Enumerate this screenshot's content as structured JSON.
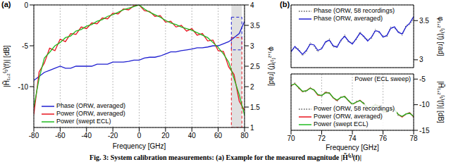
{
  "chart_data": [
    {
      "type": "line",
      "label": "(a)",
      "xlabel": "Frequency [GHz]",
      "ylabel": "|H̃₁,₂⁽¹⁾(f)| [dB]",
      "y2label": "φ₁,₂⁽¹⁾(f) [rad]",
      "x": [
        -80,
        -76,
        -72,
        -68,
        -64,
        -60,
        -56,
        -52,
        -48,
        -44,
        -40,
        -36,
        -32,
        -28,
        -24,
        -20,
        -16,
        -12,
        -8,
        -4,
        0,
        4,
        8,
        12,
        16,
        20,
        24,
        28,
        32,
        36,
        40,
        44,
        48,
        52,
        56,
        60,
        64,
        68,
        72,
        76,
        80
      ],
      "xlim": [
        -80,
        80
      ],
      "xticks": [
        -80,
        -60,
        -40,
        -20,
        0,
        20,
        40,
        60,
        80
      ],
      "ylim": [
        -15,
        0
      ],
      "yticks": [
        -10,
        -5,
        0
      ],
      "y2lim": [
        1,
        4
      ],
      "y2ticks": [
        1,
        1.5,
        2,
        2.5,
        3,
        3.5,
        4
      ],
      "grid": true,
      "legend": "lower left",
      "series": [
        {
          "name": "Phase (ORW, averaged)",
          "color": "#1f1fd0",
          "axis": "y2",
          "line_style": "solid",
          "values": [
            2.15,
            2.25,
            2.35,
            2.4,
            2.45,
            2.5,
            2.45,
            2.45,
            2.5,
            2.5,
            2.5,
            2.5,
            2.55,
            2.55,
            2.55,
            2.6,
            2.6,
            2.6,
            2.62,
            2.65,
            2.65,
            2.7,
            2.72,
            2.72,
            2.75,
            2.8,
            2.85,
            2.85,
            2.88,
            2.9,
            2.92,
            2.95,
            2.95,
            2.97,
            3.0,
            3.0,
            3.05,
            3.1,
            3.2,
            3.3,
            3.6
          ]
        },
        {
          "name": "Power (ORW, averaged)",
          "color": "#e8141e",
          "line_style": "solid",
          "values": [
            -13.4,
            -8.2,
            -7.1,
            -5.3,
            -5.6,
            -4.2,
            -4.5,
            -3.5,
            -3.6,
            -2.7,
            -2.9,
            -2.2,
            -2.3,
            -1.6,
            -1.7,
            -1.0,
            -1.1,
            -0.5,
            -0.6,
            -0.1,
            0,
            -0.7,
            -0.8,
            -1.4,
            -1.3,
            -2.1,
            -2.0,
            -2.7,
            -2.5,
            -3.2,
            -2.9,
            -3.7,
            -3.5,
            -4.4,
            -4.3,
            -5.6,
            -5.7,
            -7.6,
            -8.5,
            -11.8,
            -12.9
          ]
        },
        {
          "name": "Power (swept ECL)",
          "color": "#22bb22",
          "line_style": "solid",
          "values": [
            -12.5,
            -9,
            -6.5,
            -5.8,
            -5,
            -4.6,
            -4,
            -3.8,
            -3.2,
            -3,
            -2.6,
            -2.4,
            -2,
            -1.8,
            -1.4,
            -1.2,
            -0.9,
            -0.6,
            -0.4,
            -0.2,
            0,
            -0.5,
            -0.9,
            -1.2,
            -1.5,
            -1.9,
            -2.2,
            -2.4,
            -2.7,
            -2.9,
            -3.1,
            -3.4,
            -3.7,
            -4,
            -4.6,
            -5.2,
            -6,
            -7,
            -9,
            -11,
            -13.5
          ]
        }
      ]
    },
    {
      "type": "line",
      "label": "(b)",
      "y2label": "φ₁,₂⁽¹⁾(f) [rad]",
      "tick_labels": "y",
      "x": [
        70,
        70.25,
        70.5,
        70.75,
        71,
        71.25,
        71.5,
        71.75,
        72,
        72.25,
        72.5,
        72.75,
        73,
        73.25,
        73.5,
        73.75,
        74,
        74.25,
        74.5,
        74.75,
        75,
        75.25,
        75.5,
        75.75,
        76,
        76.25,
        76.5,
        76.75,
        77,
        77.25,
        77.5,
        77.75,
        78
      ],
      "xlim": [
        70,
        78
      ],
      "xticks": [
        70,
        72,
        74,
        76,
        78
      ],
      "y2lim": [
        2.9,
        3.7
      ],
      "y2ticks": [
        3,
        3.5
      ],
      "grid": true,
      "legend": "upper left",
      "series": [
        {
          "name": "Phase (ORW, 58 recordings)",
          "color": "#555555",
          "axis": "y2",
          "line_style": "dotted",
          "values": [
            3.12,
            3.15,
            3.14,
            3.05,
            3.1,
            3.22,
            3.17,
            3.1,
            3.16,
            3.21,
            3.27,
            3.16,
            3.18,
            3.23,
            3.32,
            3.22,
            3.22,
            3.25,
            3.36,
            3.28,
            3.26,
            3.27,
            3.39,
            3.34,
            3.31,
            3.29,
            3.42,
            3.4,
            3.37,
            3.31,
            3.44,
            3.45,
            3.52
          ]
        },
        {
          "name": "Phase (ORW, averaged)",
          "color": "#1f1fd0",
          "axis": "y2",
          "line_style": "solid",
          "values": [
            3.1,
            3.17,
            3.12,
            3.07,
            3.12,
            3.2,
            3.19,
            3.12,
            3.14,
            3.23,
            3.25,
            3.18,
            3.16,
            3.25,
            3.3,
            3.24,
            3.2,
            3.27,
            3.34,
            3.3,
            3.24,
            3.29,
            3.37,
            3.36,
            3.29,
            3.31,
            3.4,
            3.42,
            3.35,
            3.33,
            3.42,
            3.47,
            3.55
          ]
        }
      ]
    },
    {
      "type": "line",
      "xlabel": "Frequency [GHz]",
      "y2label": "|H̃₁,₂⁽¹⁾(f)| [dB]",
      "annotation": "Power (ECL sweep)",
      "x": [
        70,
        70.25,
        70.5,
        70.75,
        71,
        71.25,
        71.5,
        71.75,
        72,
        72.25,
        72.5,
        72.75,
        73,
        73.25,
        73.5,
        73.75,
        74,
        74.25,
        74.5,
        74.75,
        75,
        75.25,
        75.5,
        75.75,
        76,
        76.25,
        76.5,
        76.75,
        77,
        77.25,
        77.5,
        77.75,
        78
      ],
      "xlim": [
        70,
        78
      ],
      "xticks": [
        70,
        72,
        74,
        76,
        78
      ],
      "y2lim": [
        -15,
        -4
      ],
      "y2ticks": [
        -15,
        -10,
        -5
      ],
      "grid": true,
      "legend": "lower left",
      "series": [
        {
          "name": "Power (ORW, 58 recordings)",
          "color": "#555555",
          "axis": "y2",
          "line_style": "dotted",
          "values": [
            -6.5,
            -5.7,
            -6.9,
            -7.3,
            -7.5,
            -6.6,
            -7.3,
            -8.0,
            -8.4,
            -7.4,
            -7.9,
            -8.5,
            -9.4,
            -8.4,
            -8.6,
            -9.1,
            -10.2,
            -9.3,
            -9.3,
            -9.6,
            -10.9,
            -10.3,
            -10.2,
            -10.2,
            -11.6,
            -11.3,
            -11.1,
            -10.7,
            -12.2,
            -12.2,
            -12.0,
            -11.4,
            -12.6
          ]
        },
        {
          "name": "Power (ORW, averaged)",
          "color": "#e8141e",
          "axis": "y2",
          "line_style": "solid",
          "values": [
            -6.3,
            -5.89,
            -6.68,
            -7.47,
            -7.26,
            -6.75,
            -7.14,
            -8.13,
            -8.22,
            -7.61,
            -7.7,
            -8.69,
            -9.18,
            -8.57,
            -8.36,
            -9.25,
            -9.94,
            -9.53,
            -9.12,
            -9.81,
            -10.7,
            -10.49,
            -9.98,
            -10.37,
            -11.36,
            -11.45,
            -10.84,
            -10.93,
            -11.92,
            -12.41,
            -11.8,
            -11.59,
            -12.38
          ]
        },
        {
          "name": "Power (swept ECL)",
          "color": "#22bb22",
          "axis": "y2",
          "line_style": "solid",
          "values": [
            -6.2,
            -5.95,
            -6.6,
            -7.4,
            -7.3,
            -6.8,
            -7.1,
            -8.0,
            -8.2,
            -7.7,
            -7.7,
            -8.6,
            -9.1,
            -8.6,
            -8.4,
            -9.2,
            -9.9,
            -9.5,
            -9.2,
            -9.8,
            -10.6,
            -10.5,
            -10.0,
            -10.4,
            -11.3,
            -11.4,
            -10.9,
            -11.0,
            -11.9,
            -12.3,
            -11.8,
            -11.7,
            -12.3
          ]
        }
      ]
    }
  ],
  "caption": "Fig. 3: System calibration measurements: (a) Example for the measured magnitude |H̃⁽¹⁾(f)|"
}
